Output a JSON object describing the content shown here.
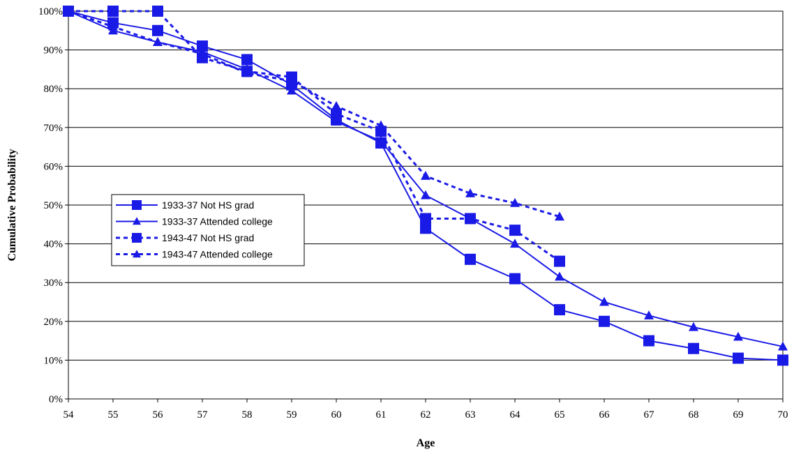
{
  "chart_data": {
    "type": "line",
    "title": "",
    "xlabel": "Age",
    "ylabel": "Cumulative Probability",
    "x": [
      54,
      55,
      56,
      57,
      58,
      59,
      60,
      61,
      62,
      63,
      64,
      65,
      66,
      67,
      68,
      69,
      70
    ],
    "xlim": [
      54,
      70
    ],
    "ylim": [
      0,
      100
    ],
    "y_ticks": [
      "0%",
      "10%",
      "20%",
      "30%",
      "40%",
      "50%",
      "60%",
      "70%",
      "80%",
      "90%",
      "100%"
    ],
    "x_ticks": [
      "54",
      "55",
      "56",
      "57",
      "58",
      "59",
      "60",
      "61",
      "62",
      "63",
      "64",
      "65",
      "66",
      "67",
      "68",
      "69",
      "70"
    ],
    "grid": "horizontal",
    "legend_position": "center-left",
    "color": "#1a1ae6",
    "series": [
      {
        "name": "1933-37 Not HS grad",
        "marker": "square",
        "line": "solid",
        "values": [
          100,
          97,
          95,
          91,
          87.5,
          81,
          72,
          66,
          44,
          36,
          31,
          23,
          20,
          15,
          13,
          10.5,
          10
        ]
      },
      {
        "name": "1933-37 Attended college",
        "marker": "triangle",
        "line": "solid",
        "values": [
          100,
          95,
          92,
          89.5,
          85,
          79.5,
          71.5,
          66.5,
          52.5,
          46.5,
          40,
          31.5,
          25,
          21.5,
          18.5,
          16,
          13.5
        ]
      },
      {
        "name": "1943-47 Not HS grad",
        "marker": "square",
        "line": "dashed",
        "values": [
          100,
          100,
          100,
          88,
          84.5,
          83,
          73.5,
          69,
          46.5,
          46.5,
          43.5,
          35.5,
          null,
          null,
          null,
          null,
          null
        ]
      },
      {
        "name": "1943-47 Attended college",
        "marker": "triangle",
        "line": "dashed",
        "values": [
          100,
          96,
          92,
          89,
          84,
          82,
          75.5,
          70.5,
          57.5,
          53,
          50.5,
          47,
          null,
          null,
          null,
          null,
          null
        ]
      }
    ]
  }
}
